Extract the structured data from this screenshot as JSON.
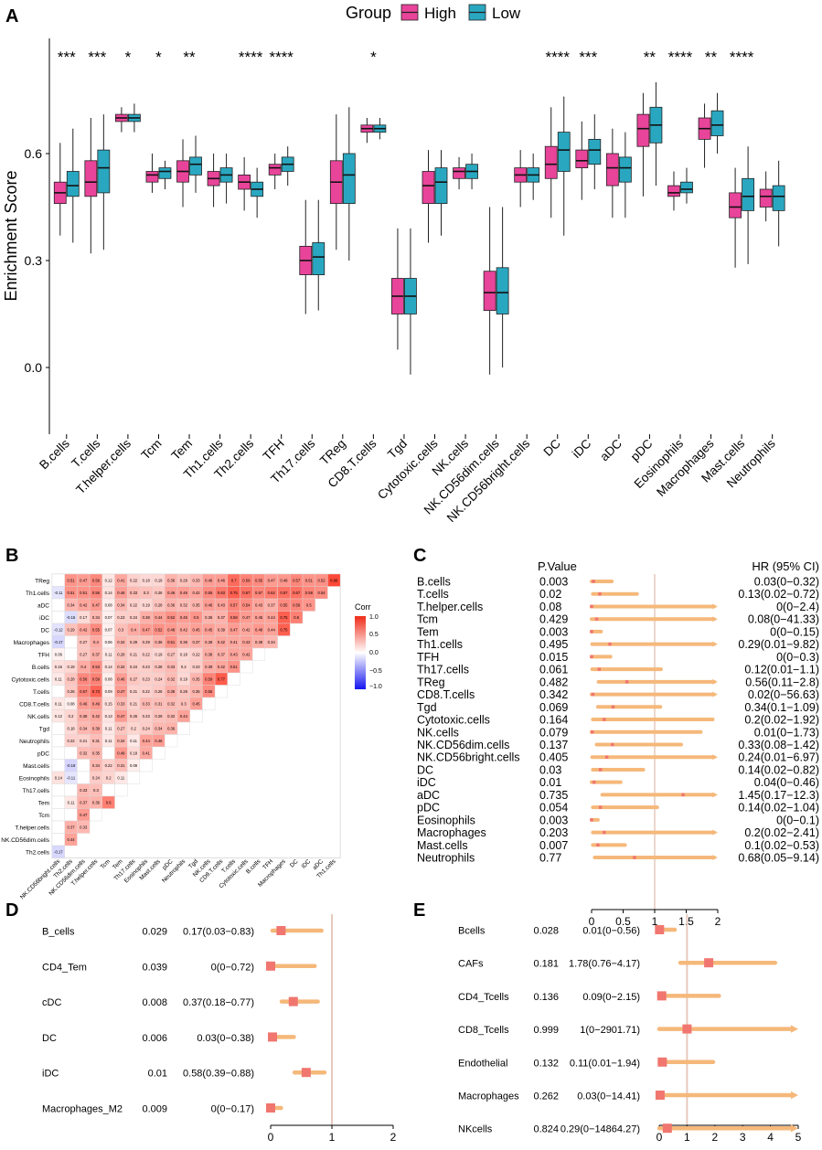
{
  "colors": {
    "high": "#e8449a",
    "low": "#2aa7c0",
    "forest": "#f5b87a",
    "forest_dot": "#f0766f",
    "refline": "#e6c9bd"
  },
  "panels": {
    "A": "A",
    "B": "B",
    "C": "C",
    "D": "D",
    "E": "E"
  },
  "chart_data": [
    {
      "id": "A",
      "type": "boxplot",
      "legend_title": "Group",
      "groups": [
        "High",
        "Low"
      ],
      "ylabel": "Enrichment Score",
      "ylim": [
        -0.2,
        0.85
      ],
      "yticks": [
        "0.0",
        "0.3",
        "0.6"
      ],
      "ytick_values": [
        0.0,
        0.3,
        0.6
      ],
      "categories": [
        "B.cells",
        "T.cells",
        "T.helper.cells",
        "Tcm",
        "Tem",
        "Th1.cells",
        "Th2.cells",
        "TFH",
        "Th17.cells",
        "TReg",
        "CD8.T.cells",
        "Tgd",
        "Cytotoxic.cells",
        "NK.cells",
        "NK.CD56dim.cells",
        "NK.CD56bright.cells",
        "DC",
        "iDC",
        "aDC",
        "pDC",
        "Eosinophils",
        "Macrophages",
        "Mast.cells",
        "Neutrophils"
      ],
      "significance": [
        "***",
        "***",
        "*",
        "*",
        "**",
        "",
        "****",
        "****",
        "",
        "",
        "*",
        "",
        "",
        "",
        "",
        "",
        "****",
        "***",
        "",
        "**",
        "****",
        "**",
        "****",
        ""
      ],
      "high": [
        [
          0.37,
          0.46,
          0.49,
          0.52,
          0.63
        ],
        [
          0.32,
          0.48,
          0.52,
          0.58,
          0.7
        ],
        [
          0.66,
          0.69,
          0.7,
          0.71,
          0.73
        ],
        [
          0.49,
          0.52,
          0.54,
          0.55,
          0.6
        ],
        [
          0.45,
          0.52,
          0.55,
          0.58,
          0.64
        ],
        [
          0.45,
          0.51,
          0.53,
          0.55,
          0.6
        ],
        [
          0.44,
          0.5,
          0.52,
          0.54,
          0.59
        ],
        [
          0.5,
          0.54,
          0.56,
          0.57,
          0.6
        ],
        [
          0.15,
          0.26,
          0.3,
          0.34,
          0.47
        ],
        [
          0.33,
          0.46,
          0.52,
          0.58,
          0.71
        ],
        [
          0.63,
          0.66,
          0.67,
          0.68,
          0.7
        ],
        [
          0.05,
          0.15,
          0.2,
          0.25,
          0.39
        ],
        [
          0.35,
          0.46,
          0.51,
          0.55,
          0.61
        ],
        [
          0.5,
          0.53,
          0.55,
          0.56,
          0.59
        ],
        [
          -0.02,
          0.16,
          0.21,
          0.27,
          0.45
        ],
        [
          0.45,
          0.52,
          0.54,
          0.56,
          0.61
        ],
        [
          0.42,
          0.53,
          0.57,
          0.62,
          0.73
        ],
        [
          0.47,
          0.56,
          0.58,
          0.61,
          0.69
        ],
        [
          0.42,
          0.51,
          0.56,
          0.6,
          0.67
        ],
        [
          0.48,
          0.62,
          0.67,
          0.71,
          0.77
        ],
        [
          0.44,
          0.48,
          0.49,
          0.51,
          0.55
        ],
        [
          0.56,
          0.64,
          0.67,
          0.7,
          0.74
        ],
        [
          0.28,
          0.42,
          0.45,
          0.49,
          0.56
        ],
        [
          0.41,
          0.45,
          0.48,
          0.5,
          0.55
        ]
      ],
      "low": [
        [
          0.35,
          0.48,
          0.51,
          0.55,
          0.67
        ],
        [
          0.33,
          0.49,
          0.56,
          0.61,
          0.71
        ],
        [
          0.66,
          0.69,
          0.7,
          0.71,
          0.74
        ],
        [
          0.5,
          0.53,
          0.55,
          0.56,
          0.58
        ],
        [
          0.49,
          0.54,
          0.57,
          0.59,
          0.65
        ],
        [
          0.46,
          0.52,
          0.54,
          0.56,
          0.6
        ],
        [
          0.42,
          0.48,
          0.5,
          0.52,
          0.56
        ],
        [
          0.51,
          0.55,
          0.57,
          0.59,
          0.62
        ],
        [
          0.16,
          0.26,
          0.31,
          0.35,
          0.47
        ],
        [
          0.3,
          0.46,
          0.54,
          0.6,
          0.73
        ],
        [
          0.64,
          0.66,
          0.67,
          0.68,
          0.7
        ],
        [
          -0.02,
          0.15,
          0.2,
          0.25,
          0.39
        ],
        [
          0.37,
          0.46,
          0.52,
          0.56,
          0.61
        ],
        [
          0.5,
          0.53,
          0.55,
          0.57,
          0.6
        ],
        [
          0.0,
          0.15,
          0.21,
          0.28,
          0.45
        ],
        [
          0.47,
          0.52,
          0.54,
          0.56,
          0.6
        ],
        [
          0.37,
          0.55,
          0.61,
          0.66,
          0.76
        ],
        [
          0.5,
          0.57,
          0.61,
          0.64,
          0.71
        ],
        [
          0.42,
          0.52,
          0.56,
          0.59,
          0.66
        ],
        [
          0.51,
          0.63,
          0.68,
          0.73,
          0.8
        ],
        [
          0.46,
          0.49,
          0.5,
          0.52,
          0.56
        ],
        [
          0.6,
          0.65,
          0.68,
          0.72,
          0.77
        ],
        [
          0.29,
          0.44,
          0.48,
          0.53,
          0.62
        ],
        [
          0.34,
          0.44,
          0.48,
          0.51,
          0.58
        ]
      ]
    },
    {
      "id": "B",
      "type": "heatmap",
      "legend_title": "Corr",
      "legend_ticks": [
        "1.0",
        "0.5",
        "0.0",
        "−0.5",
        "−1.0"
      ],
      "row_labels": [
        "TReg",
        "Th1.cells",
        "aDC",
        "iDC",
        "DC",
        "Macrophages",
        "TFH",
        "B.cells",
        "Cytotoxic.cells",
        "T.cells",
        "CD8.T.cells",
        "NK.cells",
        "Tgd",
        "Neutrophils",
        "pDC",
        "Mast.cells",
        "Eosinophils",
        "Th17.cells",
        "Tem",
        "Tcm",
        "T.helper.cells",
        "NK.CD56dim.cells",
        "Th2.cells"
      ],
      "col_labels": [
        "NK.CD56bright.cells",
        "Th2.cells",
        "NK.CD56dim.cells",
        "T.helper.cells",
        "Tcm",
        "Tem",
        "Th17.cells",
        "Eosinophils",
        "Mast.cells",
        "pDC",
        "Neutrophils",
        "Tgd",
        "NK.cells",
        "CD8.T.cells",
        "T.cells",
        "Cytotoxic.cells",
        "B.cells",
        "TFH",
        "Macrophages",
        "DC",
        "iDC",
        "aDC",
        "Th1.cells"
      ],
      "values": [
        [
          null,
          0.51,
          0.47,
          0.56,
          0.12,
          0.41,
          0.22,
          0.18,
          0.19,
          0.36,
          0.29,
          0.33,
          0.46,
          0.46,
          0.7,
          0.59,
          0.55,
          0.47,
          0.49,
          0.57,
          0.51,
          0.52,
          0.86
        ],
        [
          -0.11,
          0.51,
          0.51,
          0.56,
          0.14,
          0.46,
          0.33,
          0.3,
          0.26,
          0.46,
          0.46,
          0.42,
          0.55,
          0.63,
          0.75,
          0.67,
          0.57,
          0.62,
          0.67,
          0.67,
          0.58,
          0.54
        ],
        [
          null,
          0.34,
          0.42,
          0.47,
          0.08,
          0.34,
          0.22,
          0.19,
          0.28,
          0.36,
          0.32,
          0.35,
          0.46,
          0.43,
          0.57,
          0.54,
          0.43,
          0.37,
          0.55,
          0.56,
          0.5
        ],
        [
          null,
          -0.15,
          0.17,
          0.34,
          0.07,
          0.23,
          0.24,
          0.38,
          0.44,
          0.52,
          0.46,
          0.5,
          0.36,
          0.37,
          0.58,
          0.47,
          0.45,
          0.44,
          0.75,
          0.6
        ],
        [
          -0.12,
          0.29,
          0.42,
          0.55,
          0.07,
          0.3,
          0.4,
          0.47,
          0.52,
          0.48,
          0.42,
          0.45,
          0.45,
          0.39,
          0.47,
          0.42,
          0.48,
          0.44,
          0.75
        ],
        [
          -0.17,
          null,
          0.27,
          0.4,
          0.06,
          0.34,
          0.29,
          0.29,
          0.36,
          0.51,
          0.36,
          0.37,
          0.38,
          0.42,
          0.41,
          0.43,
          0.38,
          0.34
        ],
        [
          0.06,
          null,
          0.27,
          0.37,
          0.11,
          0.28,
          0.21,
          0.22,
          0.19,
          0.27,
          0.18,
          0.22,
          0.38,
          0.37,
          0.43,
          0.42
        ],
        [
          0.15,
          0.19,
          0.4,
          0.53,
          0.14,
          0.34,
          0.24,
          0.23,
          0.28,
          0.33,
          0.2,
          0.23,
          0.39,
          0.42,
          0.51
        ],
        [
          0.11,
          0.28,
          0.56,
          0.59,
          0.08,
          0.46,
          0.27,
          0.23,
          0.24,
          0.32,
          0.19,
          0.35,
          0.59,
          0.77
        ],
        [
          null,
          0.26,
          0.57,
          0.73,
          0.09,
          0.47,
          0.21,
          0.22,
          0.26,
          0.38,
          0.28,
          0.35,
          0.55
        ],
        [
          0.11,
          0.08,
          0.46,
          0.49,
          0.15,
          0.33,
          0.21,
          0.33,
          0.31,
          0.32,
          0.3,
          0.45
        ],
        [
          0.12,
          0.2,
          0.38,
          0.42,
          0.13,
          0.47,
          0.26,
          0.23,
          0.29,
          0.32,
          0.44
        ],
        [
          null,
          0.18,
          0.34,
          0.39,
          0.11,
          0.27,
          0.2,
          0.24,
          0.34,
          0.36
        ],
        [
          null,
          0.22,
          0.21,
          0.31,
          0.11,
          0.34,
          0.11,
          0.44,
          0.46
        ],
        [
          null,
          null,
          0.32,
          0.35,
          null,
          0.48,
          0.18,
          0.41
        ],
        [
          null,
          -0.18,
          null,
          0.34,
          0.22,
          0.31,
          0.08
        ],
        [
          0.14,
          -0.11,
          null,
          0.24,
          0.2,
          0.11
        ],
        [
          null,
          null,
          0.33,
          0.3,
          null
        ],
        [
          null,
          0.11,
          0.37,
          0.36,
          0.6
        ],
        [
          null,
          null,
          0.47
        ],
        [
          null,
          0.37,
          0.33
        ],
        [
          null,
          0.44
        ],
        [
          -0.17
        ]
      ]
    },
    {
      "id": "C",
      "type": "forest",
      "col_pvalue": "P.Value",
      "col_hr": "HR (95% CI)",
      "xticks": [
        "0",
        "0.5",
        "1",
        "1.5",
        "2"
      ],
      "xlim": [
        0,
        2
      ],
      "ref": 1,
      "rows": [
        {
          "label": "B.cells",
          "p": "0.003",
          "hr": "0.03(0−0.32)",
          "est": 0.03,
          "lo": 0,
          "hi": 0.32
        },
        {
          "label": "T.cells",
          "p": "0.02",
          "hr": "0.13(0.02−0.72)",
          "est": 0.13,
          "lo": 0.02,
          "hi": 0.72
        },
        {
          "label": "T.helper.cells",
          "p": "0.08",
          "hr": "0(0−2.4)",
          "est": 0,
          "lo": 0,
          "hi": 2.4
        },
        {
          "label": "Tcm",
          "p": "0.429",
          "hr": "0.08(0−41.33)",
          "est": 0.08,
          "lo": 0,
          "hi": 41.33
        },
        {
          "label": "Tem",
          "p": "0.003",
          "hr": "0(0−0.15)",
          "est": 0,
          "lo": 0,
          "hi": 0.15
        },
        {
          "label": "Th1.cells",
          "p": "0.495",
          "hr": "0.29(0.01−9.82)",
          "est": 0.29,
          "lo": 0.01,
          "hi": 9.82
        },
        {
          "label": "TFH",
          "p": "0.015",
          "hr": "0(0−0.3)",
          "est": 0,
          "lo": 0,
          "hi": 0.3
        },
        {
          "label": "Th17.cells",
          "p": "0.061",
          "hr": "0.12(0.01−1.1)",
          "est": 0.12,
          "lo": 0.01,
          "hi": 1.1
        },
        {
          "label": "TReg",
          "p": "0.482",
          "hr": "0.56(0.11−2.8)",
          "est": 0.56,
          "lo": 0.11,
          "hi": 2.8
        },
        {
          "label": "CD8.T.cells",
          "p": "0.342",
          "hr": "0.02(0−56.63)",
          "est": 0.02,
          "lo": 0,
          "hi": 56.63
        },
        {
          "label": "Tgd",
          "p": "0.069",
          "hr": "0.34(0.1−1.09)",
          "est": 0.34,
          "lo": 0.1,
          "hi": 1.09
        },
        {
          "label": "Cytotoxic.cells",
          "p": "0.164",
          "hr": "0.2(0.02−1.92)",
          "est": 0.2,
          "lo": 0.02,
          "hi": 1.92
        },
        {
          "label": "NK.cells",
          "p": "0.079",
          "hr": "0.01(0−1.73)",
          "est": 0.01,
          "lo": 0,
          "hi": 1.73
        },
        {
          "label": "NK.CD56dim.cells",
          "p": "0.137",
          "hr": "0.33(0.08−1.42)",
          "est": 0.33,
          "lo": 0.08,
          "hi": 1.42
        },
        {
          "label": "NK.CD56bright.cells",
          "p": "0.405",
          "hr": "0.24(0.01−6.97)",
          "est": 0.24,
          "lo": 0.01,
          "hi": 6.97
        },
        {
          "label": "DC",
          "p": "0.03",
          "hr": "0.14(0.02−0.82)",
          "est": 0.14,
          "lo": 0.02,
          "hi": 0.82
        },
        {
          "label": "iDC",
          "p": "0.01",
          "hr": "0.04(0−0.46)",
          "est": 0.04,
          "lo": 0,
          "hi": 0.46
        },
        {
          "label": "aDC",
          "p": "0.735",
          "hr": "1.45(0.17−12.3)",
          "est": 1.45,
          "lo": 0.17,
          "hi": 12.3
        },
        {
          "label": "pDC",
          "p": "0.054",
          "hr": "0.14(0.02−1.04)",
          "est": 0.14,
          "lo": 0.02,
          "hi": 1.04
        },
        {
          "label": "Eosinophils",
          "p": "0.003",
          "hr": "0(0−0.1)",
          "est": 0,
          "lo": 0,
          "hi": 0.1
        },
        {
          "label": "Macrophages",
          "p": "0.203",
          "hr": "0.2(0.02−2.41)",
          "est": 0.2,
          "lo": 0.02,
          "hi": 2.41
        },
        {
          "label": "Mast.cells",
          "p": "0.007",
          "hr": "0.1(0.02−0.53)",
          "est": 0.1,
          "lo": 0.02,
          "hi": 0.53
        },
        {
          "label": "Neutrophils",
          "p": "0.77",
          "hr": "0.68(0.05−9.14)",
          "est": 0.68,
          "lo": 0.05,
          "hi": 9.14
        }
      ]
    },
    {
      "id": "D",
      "type": "forest",
      "xticks": [
        "0",
        "1",
        "2"
      ],
      "xlim": [
        0,
        2
      ],
      "ref": 1,
      "rows": [
        {
          "label": "B_cells",
          "p": "0.029",
          "hr": "0.17(0.03−0.83)",
          "est": 0.17,
          "lo": 0.03,
          "hi": 0.83
        },
        {
          "label": "CD4_Tem",
          "p": "0.039",
          "hr": "0(0−0.72)",
          "est": 0,
          "lo": 0,
          "hi": 0.72
        },
        {
          "label": "cDC",
          "p": "0.008",
          "hr": "0.37(0.18−0.77)",
          "est": 0.37,
          "lo": 0.18,
          "hi": 0.77
        },
        {
          "label": "DC",
          "p": "0.006",
          "hr": "0.03(0−0.38)",
          "est": 0.03,
          "lo": 0,
          "hi": 0.38
        },
        {
          "label": "iDC",
          "p": "0.01",
          "hr": "0.58(0.39−0.88)",
          "est": 0.58,
          "lo": 0.39,
          "hi": 0.88
        },
        {
          "label": "Macrophages_M2",
          "p": "0.009",
          "hr": "0(0−0.17)",
          "est": 0,
          "lo": 0,
          "hi": 0.17
        }
      ]
    },
    {
      "id": "E",
      "type": "forest",
      "xticks": [
        "0",
        "1",
        "2",
        "3",
        "4",
        "5"
      ],
      "xlim": [
        0,
        5
      ],
      "ref": 1,
      "rows": [
        {
          "label": "Bcells",
          "p": "0.028",
          "hr": "0.01(0−0.56)",
          "est": 0.01,
          "lo": 0,
          "hi": 0.56
        },
        {
          "label": "CAFs",
          "p": "0.181",
          "hr": "1.78(0.76−4.17)",
          "est": 1.78,
          "lo": 0.76,
          "hi": 4.17
        },
        {
          "label": "CD4_Tcells",
          "p": "0.136",
          "hr": "0.09(0−2.15)",
          "est": 0.09,
          "lo": 0,
          "hi": 2.15
        },
        {
          "label": "CD8_Tcells",
          "p": "0.999",
          "hr": "1(0−2901.71)",
          "est": 1,
          "lo": 0,
          "hi": 2901.71
        },
        {
          "label": "Endothelial",
          "p": "0.132",
          "hr": "0.11(0.01−1.94)",
          "est": 0.11,
          "lo": 0.01,
          "hi": 1.94
        },
        {
          "label": "Macrophages",
          "p": "0.262",
          "hr": "0.03(0−14.41)",
          "est": 0.03,
          "lo": 0,
          "hi": 14.41
        },
        {
          "label": "NKcells",
          "p": "0.824",
          "hr": "0.29(0−14864.27)",
          "est": 0.29,
          "lo": 0,
          "hi": 14864.27
        }
      ]
    }
  ]
}
